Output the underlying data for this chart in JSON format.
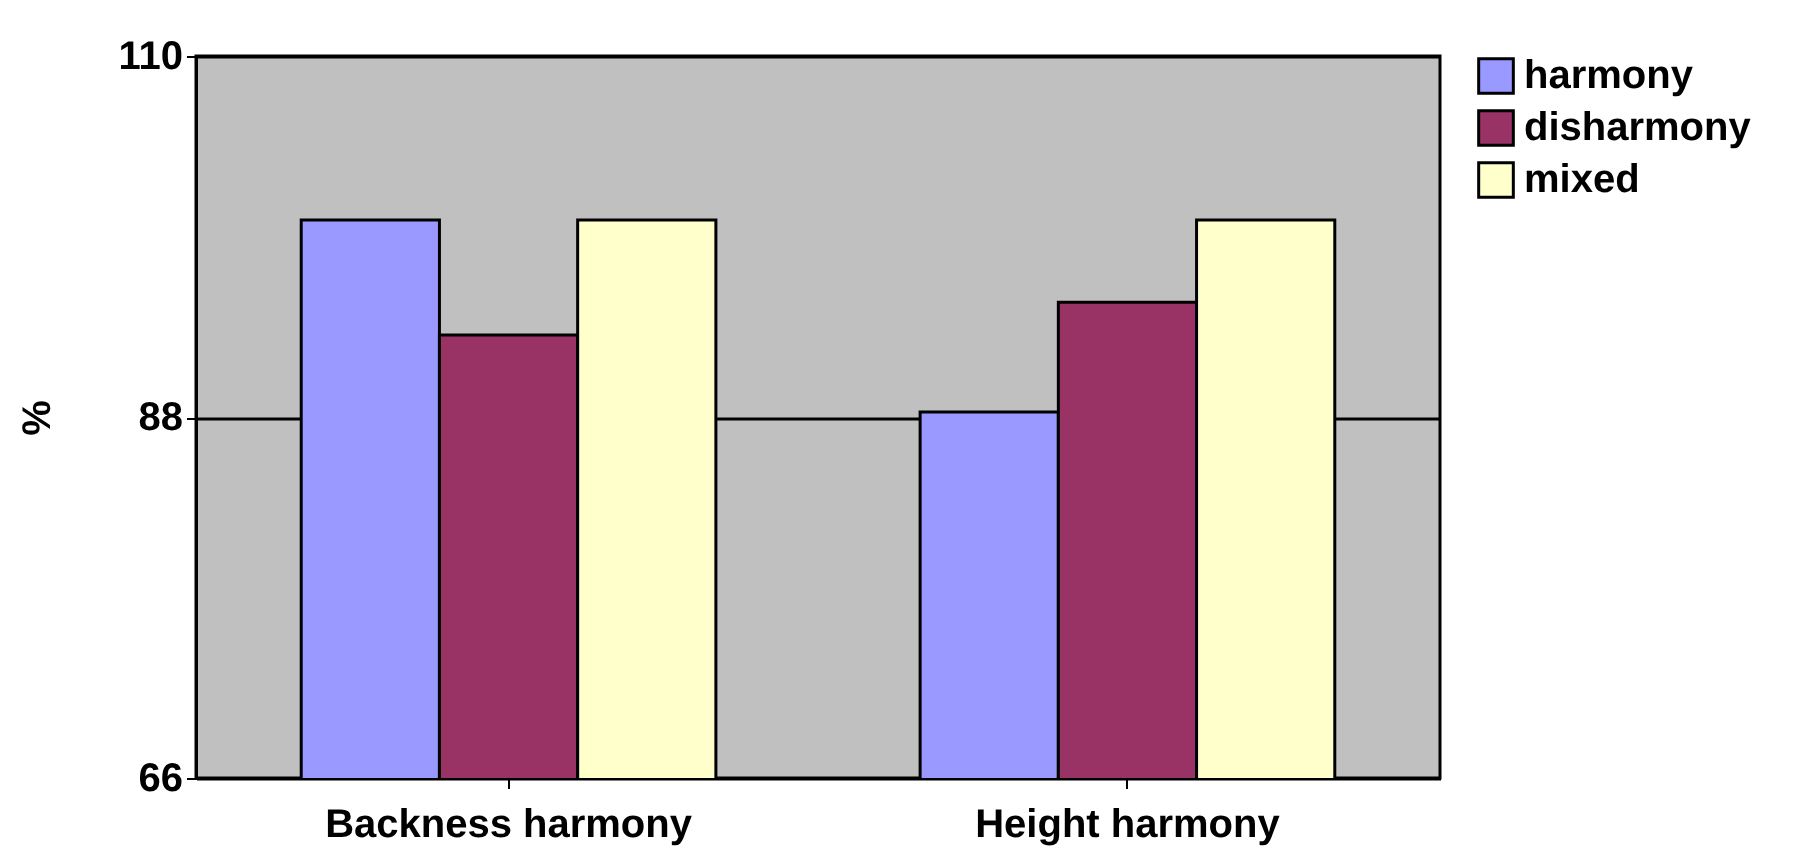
{
  "chart_data": {
    "type": "bar",
    "ylabel": "%",
    "categories": [
      "Backness harmony",
      "Height harmony"
    ],
    "series": [
      {
        "name": "harmony",
        "color": "#9999ff",
        "values": [
          100,
          88.3
        ]
      },
      {
        "name": "disharmony",
        "color": "#993366",
        "values": [
          93,
          95
        ]
      },
      {
        "name": "mixed",
        "color": "#ffffcc",
        "values": [
          100,
          100
        ]
      }
    ],
    "ylim": [
      66,
      110
    ],
    "yticks": [
      66,
      88,
      110
    ],
    "grid": "y",
    "legend": "right"
  }
}
